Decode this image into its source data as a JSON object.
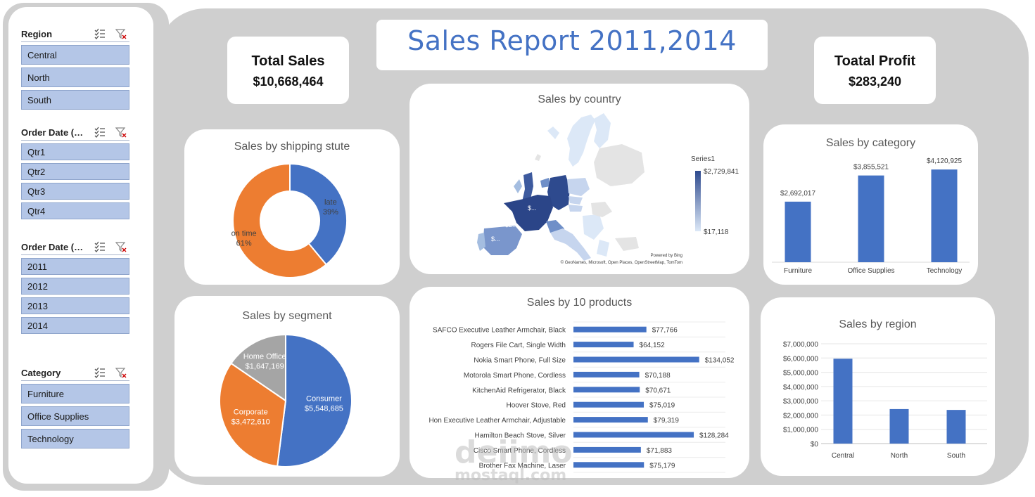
{
  "report": {
    "title": "Sales Report 2011,2014"
  },
  "kpis": {
    "total_sales": {
      "label": "Total Sales",
      "value": "$10,668,464"
    },
    "total_profit": {
      "label": "Toatal Profit",
      "value": "$283,240"
    }
  },
  "slicers": [
    {
      "title": "Region",
      "items": [
        "Central",
        "North",
        "South"
      ]
    },
    {
      "title": "Order Date (Quarters)",
      "items": [
        "Qtr1",
        "Qtr2",
        "Qtr3",
        "Qtr4"
      ]
    },
    {
      "title": "Order Date (Years)",
      "items": [
        "2011",
        "2012",
        "2013",
        "2014"
      ]
    },
    {
      "title": "Category",
      "items": [
        "Furniture",
        "Office Supplies",
        "Technology"
      ]
    }
  ],
  "icons": {
    "multi_select": "multi-select-icon",
    "clear_filter": "clear-filter-icon"
  },
  "colors": {
    "blue": "#4472c4",
    "orange": "#ed7d31",
    "gray": "#a5a5a5",
    "slicer": "#b4c6e7",
    "map_high": "#2e4a8e",
    "map_low": "#dce8f7"
  },
  "watermark": {
    "line1": "deiimo",
    "line2": "mostaql.com"
  },
  "chart_data": [
    {
      "id": "shipping",
      "type": "pie",
      "variant": "doughnut",
      "title": "Sales by shipping stute",
      "slices": [
        {
          "label": "late",
          "percent": 39,
          "display": "39%",
          "color": "#4472c4"
        },
        {
          "label": "on time",
          "percent": 61,
          "display": "61%",
          "color": "#ed7d31"
        }
      ]
    },
    {
      "id": "segment",
      "type": "pie",
      "title": "Sales by segment",
      "slices": [
        {
          "label": "Consumer",
          "value": 5548685,
          "display": "$5,548,685",
          "color": "#4472c4"
        },
        {
          "label": "Corporate",
          "value": 3472610,
          "display": "$3,472,610",
          "color": "#ed7d31"
        },
        {
          "label": "Home Office",
          "value": 1647169,
          "display": "$1,647,169",
          "color": "#a5a5a5"
        }
      ]
    },
    {
      "id": "country",
      "type": "map",
      "title": "Sales by country",
      "legend_title": "Series1",
      "legend_max": "$2,729,841",
      "legend_min": "$17,118",
      "visible_labels": [
        "$2...",
        "$...",
        "$..."
      ],
      "attribution": "© GeoNames, Microsoft, Open Places, OpenStreetMap, TomTom",
      "powered_by": "Powered by Bing"
    },
    {
      "id": "products",
      "type": "bar",
      "orientation": "horizontal",
      "title": "Sales by 10 products",
      "categories": [
        "SAFCO Executive Leather Armchair, Black",
        "Rogers File Cart, Single Width",
        "Nokia Smart Phone, Full Size",
        "Motorola Smart Phone, Cordless",
        "KitchenAid Refrigerator, Black",
        "Hoover Stove, Red",
        "Hon Executive Leather Armchair, Adjustable",
        "Hamilton Beach Stove, Silver",
        "Cisco Smart Phone, Cordless",
        "Brother Fax Machine, Laser"
      ],
      "values": [
        77766,
        64152,
        134052,
        70188,
        70671,
        75019,
        79319,
        128284,
        71883,
        75179
      ],
      "labels": [
        "$77,766",
        "$64,152",
        "$134,052",
        "$70,188",
        "$70,671",
        "$75,019",
        "$79,319",
        "$128,284",
        "$71,883",
        "$75,179"
      ],
      "xlim": [
        0,
        135000
      ],
      "grid": true
    },
    {
      "id": "category",
      "type": "bar",
      "title": "Sales by category",
      "categories": [
        "Furniture",
        "Office Supplies",
        "Technology"
      ],
      "values": [
        2692017,
        3855521,
        4120925
      ],
      "labels": [
        "$2,692,017",
        "$3,855,521",
        "$4,120,925"
      ],
      "ylim": [
        0,
        4500000
      ]
    },
    {
      "id": "region",
      "type": "bar",
      "title": "Sales by region",
      "categories": [
        "Central",
        "North",
        "South"
      ],
      "values": [
        5950000,
        2420000,
        2360000
      ],
      "ylim": [
        0,
        7000000
      ],
      "yticks": [
        "$0",
        "$1,000,000",
        "$2,000,000",
        "$3,000,000",
        "$4,000,000",
        "$5,000,000",
        "$6,000,000",
        "$7,000,000"
      ],
      "grid": true
    }
  ]
}
